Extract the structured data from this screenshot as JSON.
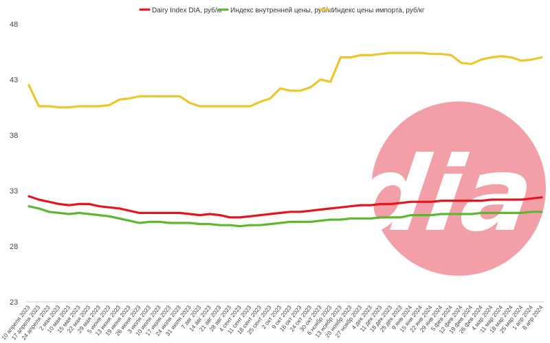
{
  "chart_data": {
    "type": "line",
    "title": "",
    "xlabel": "",
    "ylabel": "",
    "ylim": [
      23,
      48
    ],
    "yticks": [
      23,
      28,
      33,
      38,
      43,
      48
    ],
    "grid": false,
    "legend_position": "top",
    "x": [
      "10 апреля 2023",
      "17 апреля 2023",
      "24 апреля 2023",
      "2 мая 2023",
      "10 мая 2023",
      "15 мая 2023",
      "22 мая 2023",
      "29 мая 2023",
      "5 июня 2023",
      "13 июня 2023",
      "19 июня 2023",
      "26 июня 2023",
      "3 июля 2023",
      "10 июля 2023",
      "17 июля 2023",
      "24 июля 2023",
      "31 июля 2023",
      "7 авг 2023",
      "14 авг 2023",
      "21 авг 2023",
      "28 авг 2023",
      "4 сент 2023",
      "11 сент 2023",
      "18 сент 2023",
      "25 сент 2023",
      "2 окт 2023",
      "9 окт 2023",
      "16 окт 2023",
      "24 окт 2023",
      "30 окт 2023",
      "6 ноябр 2023",
      "13 ноябр 2023",
      "20 ноябр 2023",
      "27 ноябр 2023",
      "4 дек 2023",
      "11 дек 2023",
      "18 дек 2023",
      "25 дек 2023",
      "9 янв 2024",
      "15 янв 2024",
      "22 янв 2024",
      "29 янв 2024",
      "5 фев 2024",
      "12 фев 2024",
      "19 фев 2024",
      "26 фев 2024",
      "4 мар 2024",
      "11 мар 2024",
      "18 мар 2024",
      "25 мар 2024",
      "1 апр 2024",
      "8 апр 2024"
    ],
    "series": [
      {
        "name": "Dairy Index DIA, руб/кг",
        "color": "#e8141c",
        "values": [
          32.5,
          32.2,
          32.0,
          31.8,
          31.7,
          31.8,
          31.8,
          31.6,
          31.5,
          31.4,
          31.2,
          31.0,
          31.0,
          31.0,
          31.0,
          31.0,
          30.9,
          30.8,
          30.9,
          30.8,
          30.6,
          30.6,
          30.7,
          30.8,
          30.9,
          31.0,
          31.1,
          31.1,
          31.2,
          31.3,
          31.4,
          31.5,
          31.6,
          31.7,
          31.7,
          31.8,
          31.8,
          31.9,
          32.0,
          32.0,
          32.0,
          32.1,
          32.1,
          32.1,
          32.1,
          32.1,
          32.2,
          32.2,
          32.2,
          32.2,
          32.3,
          32.4
        ]
      },
      {
        "name": "Индекс внутренней цены, руб/кг",
        "color": "#5cb82e",
        "values": [
          31.6,
          31.4,
          31.1,
          31.0,
          30.9,
          31.0,
          30.9,
          30.8,
          30.7,
          30.5,
          30.3,
          30.1,
          30.2,
          30.2,
          30.1,
          30.1,
          30.1,
          30.0,
          30.0,
          29.9,
          29.9,
          29.8,
          29.9,
          29.9,
          30.0,
          30.1,
          30.2,
          30.2,
          30.2,
          30.3,
          30.4,
          30.4,
          30.5,
          30.5,
          30.5,
          30.6,
          30.6,
          30.6,
          30.8,
          30.8,
          30.8,
          30.9,
          30.9,
          30.9,
          30.9,
          31.0,
          31.0,
          31.0,
          31.0,
          31.0,
          31.1,
          31.1
        ]
      },
      {
        "name": "Индекс цены импорта, руб/кг",
        "color": "#eec52a",
        "values": [
          42.5,
          40.6,
          40.6,
          40.5,
          40.5,
          40.6,
          40.6,
          40.6,
          40.7,
          41.2,
          41.3,
          41.5,
          41.5,
          41.5,
          41.5,
          41.5,
          40.9,
          40.6,
          40.6,
          40.6,
          40.6,
          40.6,
          40.6,
          41.0,
          41.3,
          42.2,
          42.0,
          42.0,
          42.3,
          43.0,
          42.8,
          45.0,
          45.0,
          45.2,
          45.2,
          45.3,
          45.4,
          45.4,
          45.4,
          45.4,
          45.3,
          45.3,
          45.2,
          44.5,
          44.4,
          44.8,
          45.0,
          45.1,
          45.0,
          44.7,
          44.8,
          45.0
        ]
      }
    ]
  },
  "watermark": {
    "text": "dia",
    "circle_color": "#f29aa3",
    "text_color": "#ffffff"
  }
}
